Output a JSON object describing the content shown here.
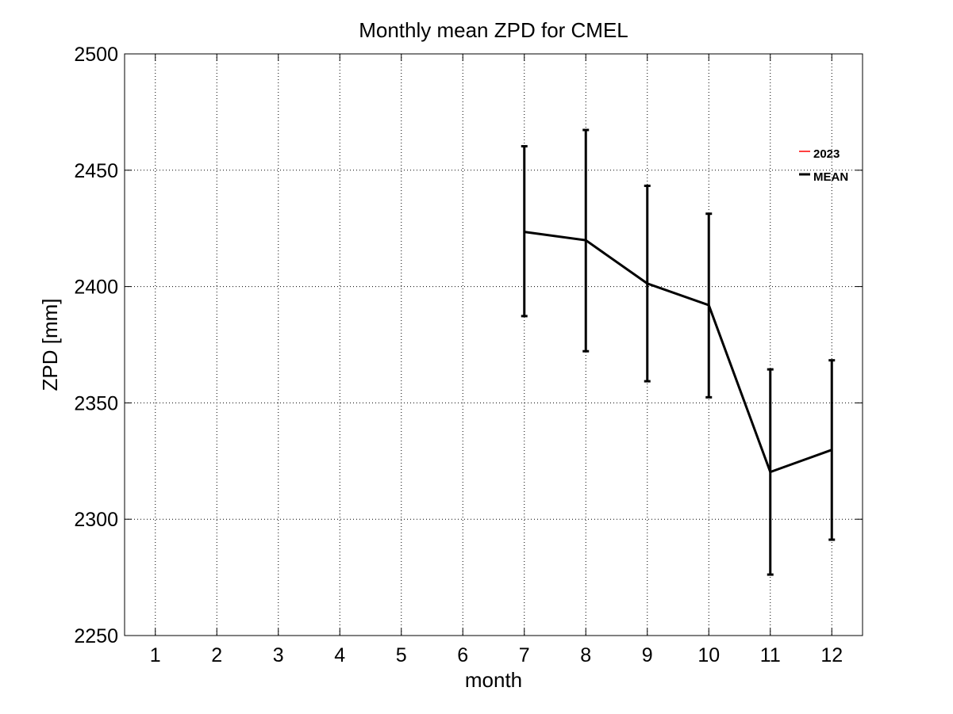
{
  "chart_data": {
    "type": "line",
    "title": "Monthly mean ZPD for CMEL",
    "xlabel": "month",
    "ylabel": "ZPD [mm]",
    "xlim": [
      0.5,
      12.5
    ],
    "ylim": [
      2250,
      2500
    ],
    "xticks": [
      1,
      2,
      3,
      4,
      5,
      6,
      7,
      8,
      9,
      10,
      11,
      12
    ],
    "yticks": [
      2250,
      2300,
      2350,
      2400,
      2450,
      2500
    ],
    "grid": true,
    "legend_position": "top-right",
    "series": [
      {
        "name": "2023",
        "color": "#ff0000",
        "x": [],
        "values": []
      },
      {
        "name": "MEAN",
        "color": "#000000",
        "x": [
          7,
          8,
          9,
          10,
          11,
          12
        ],
        "values": [
          2423.5,
          2419.9,
          2401.3,
          2392,
          2320.3,
          2329.8
        ],
        "error_low": [
          2387.3,
          2372.2,
          2359.3,
          2352.4,
          2276.2,
          2291.2
        ],
        "error_high": [
          2460.3,
          2467.3,
          2443.3,
          2431.3,
          2364.4,
          2368.3
        ]
      }
    ]
  }
}
